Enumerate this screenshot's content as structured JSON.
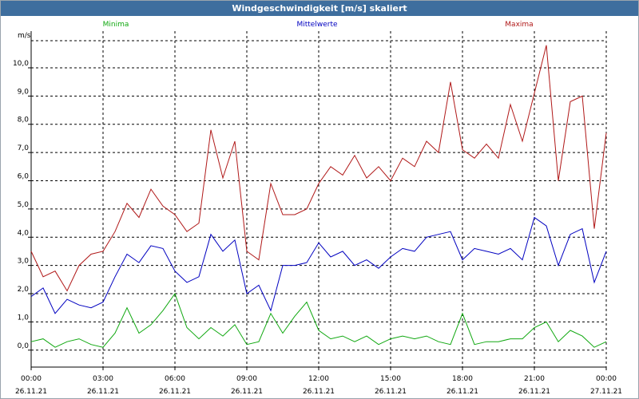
{
  "window": {
    "title": "Windgeschwindigkeit [m/s] skaliert"
  },
  "colors": {
    "minima": "#10a810",
    "mittelwerte": "#0000c0",
    "maxima": "#b01818",
    "grid": "#000000",
    "titlebar": "#3e6e9e"
  },
  "chart_data": {
    "type": "line",
    "title": "Windgeschwindigkeit [m/s] skaliert",
    "ylabel": "m/s",
    "xlabel": "",
    "ylim": [
      -0.6,
      11.3
    ],
    "xlim": [
      0,
      24
    ],
    "grid": true,
    "legend_position": "top",
    "y_ticks": [
      "0,0",
      "1,0",
      "2,0",
      "3,0",
      "4,0",
      "5,0",
      "6,0",
      "7,0",
      "8,0",
      "9,0",
      "10,0"
    ],
    "x_ticks": [
      {
        "time": "00:00",
        "date": "26.11.21"
      },
      {
        "time": "03:00",
        "date": "26.11.21"
      },
      {
        "time": "06:00",
        "date": "26.11.21"
      },
      {
        "time": "09:00",
        "date": "26.11.21"
      },
      {
        "time": "12:00",
        "date": "26.11.21"
      },
      {
        "time": "15:00",
        "date": "26.11.21"
      },
      {
        "time": "18:00",
        "date": "26.11.21"
      },
      {
        "time": "21:00",
        "date": "26.11.21"
      },
      {
        "time": "00:00",
        "date": "27.11.21"
      }
    ],
    "x_hours": [
      0,
      0.5,
      1,
      1.5,
      2,
      2.5,
      3,
      3.5,
      4,
      4.5,
      5,
      5.5,
      6,
      6.5,
      7,
      7.5,
      8,
      8.5,
      9,
      9.5,
      10,
      10.5,
      11,
      11.5,
      12,
      12.5,
      13,
      13.5,
      14,
      14.5,
      15,
      15.5,
      16,
      16.5,
      17,
      17.5,
      18,
      18.5,
      19,
      19.5,
      20,
      20.5,
      21,
      21.5,
      22,
      22.5,
      23,
      23.5,
      24
    ],
    "series": [
      {
        "name": "Maxima",
        "values": [
          3.5,
          2.6,
          2.8,
          2.1,
          3.0,
          3.4,
          3.5,
          4.2,
          5.2,
          4.7,
          5.7,
          5.1,
          4.8,
          4.2,
          4.5,
          7.8,
          6.1,
          7.4,
          3.5,
          3.2,
          5.9,
          4.8,
          4.8,
          5.0,
          5.9,
          6.5,
          6.2,
          6.9,
          6.1,
          6.5,
          6.0,
          6.8,
          6.5,
          7.4,
          7.0,
          9.5,
          7.1,
          6.8,
          7.3,
          6.8,
          8.7,
          7.4,
          9.1,
          10.8,
          6.0,
          8.8,
          9.0,
          4.3,
          7.7
        ]
      },
      {
        "name": "Mittelwerte",
        "values": [
          1.9,
          2.2,
          1.3,
          1.8,
          1.6,
          1.5,
          1.7,
          2.6,
          3.4,
          3.1,
          3.7,
          3.6,
          2.8,
          2.4,
          2.6,
          4.1,
          3.5,
          3.9,
          2.0,
          2.3,
          1.4,
          3.0,
          3.0,
          3.1,
          3.8,
          3.3,
          3.5,
          3.0,
          3.2,
          2.9,
          3.3,
          3.6,
          3.5,
          4.0,
          4.1,
          4.2,
          3.2,
          3.6,
          3.5,
          3.4,
          3.6,
          3.2,
          4.7,
          4.4,
          3.0,
          4.1,
          4.3,
          2.4,
          3.5
        ]
      },
      {
        "name": "Minima",
        "values": [
          0.3,
          0.4,
          0.1,
          0.3,
          0.4,
          0.2,
          0.1,
          0.6,
          1.5,
          0.6,
          0.9,
          1.4,
          2.0,
          0.8,
          0.4,
          0.8,
          0.5,
          0.9,
          0.2,
          0.3,
          1.3,
          0.6,
          1.2,
          1.7,
          0.7,
          0.4,
          0.5,
          0.3,
          0.5,
          0.2,
          0.4,
          0.5,
          0.4,
          0.5,
          0.3,
          0.2,
          1.3,
          0.2,
          0.3,
          0.3,
          0.4,
          0.4,
          0.8,
          1.0,
          0.3,
          0.7,
          0.5,
          0.1,
          0.3
        ]
      }
    ]
  }
}
